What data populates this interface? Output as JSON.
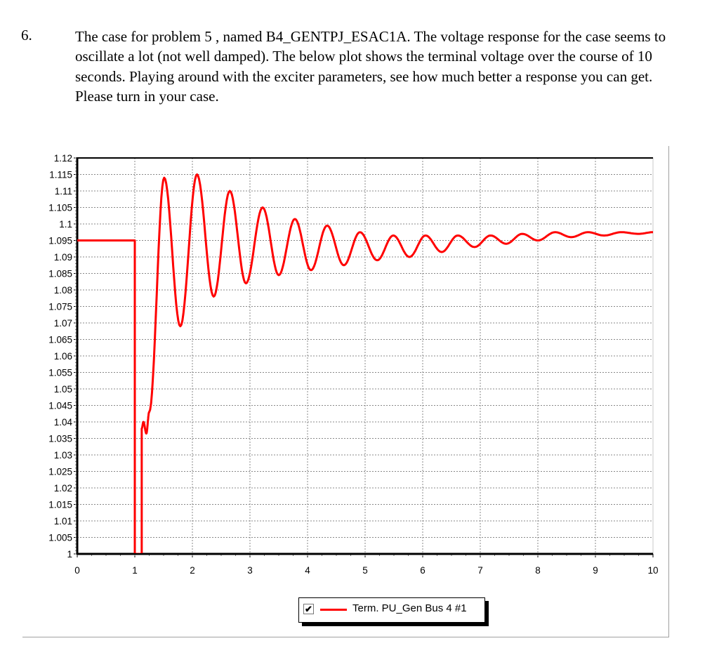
{
  "problem": {
    "number": "6.",
    "text": "The case for problem 5 , named B4_GENTPJ_ESAC1A.  The voltage response for the case seems to oscillate a lot (not well damped).  The below plot shows the terminal voltage over the course of 10 seconds.  Playing around with the exciter parameters, see how much better a response you can get.  Please turn in your case."
  },
  "chart_data": {
    "type": "line",
    "title": "",
    "xlabel": "",
    "ylabel": "",
    "xlim": [
      0,
      10
    ],
    "ylim": [
      1,
      1.12
    ],
    "x_ticks": [
      "0",
      "1",
      "2",
      "3",
      "4",
      "5",
      "6",
      "7",
      "8",
      "9",
      "10"
    ],
    "y_ticks": [
      "1",
      "1.005",
      "1.01",
      "1.015",
      "1.02",
      "1.025",
      "1.03",
      "1.035",
      "1.04",
      "1.045",
      "1.05",
      "1.055",
      "1.06",
      "1.065",
      "1.07",
      "1.075",
      "1.08",
      "1.085",
      "1.09",
      "1.095",
      "1.1",
      "1.105",
      "1.11",
      "1.115",
      "1.12"
    ],
    "grid": true,
    "legend_placement": "bottom-center",
    "series": [
      {
        "name": "Term. PU_Gen Bus 4 #1",
        "color": "#ff0000",
        "visible_checked": true,
        "points": [
          [
            0,
            1.095
          ],
          [
            1.0,
            1.095
          ],
          [
            1.0,
            1.0
          ],
          [
            1.12,
            1.0
          ],
          [
            1.12,
            1.038
          ],
          [
            1.15,
            1.04
          ],
          [
            1.2,
            1.0365
          ],
          [
            1.25,
            1.043
          ],
          [
            1.51,
            1.114
          ],
          [
            1.79,
            1.069
          ],
          [
            2.08,
            1.115
          ],
          [
            2.37,
            1.078
          ],
          [
            2.65,
            1.11
          ],
          [
            2.93,
            1.082
          ],
          [
            3.22,
            1.105
          ],
          [
            3.5,
            1.0845
          ],
          [
            3.78,
            1.1015
          ],
          [
            4.06,
            1.086
          ],
          [
            4.34,
            1.0995
          ],
          [
            4.63,
            1.0875
          ],
          [
            4.91,
            1.0975
          ],
          [
            5.21,
            1.089
          ],
          [
            5.49,
            1.0965
          ],
          [
            5.77,
            1.09
          ],
          [
            6.05,
            1.0965
          ],
          [
            6.33,
            1.0915
          ],
          [
            6.61,
            1.0965
          ],
          [
            6.9,
            1.093
          ],
          [
            7.18,
            1.0965
          ],
          [
            7.45,
            1.094
          ],
          [
            7.73,
            1.097
          ],
          [
            8.0,
            1.095
          ],
          [
            8.3,
            1.0975
          ],
          [
            8.58,
            1.096
          ],
          [
            8.87,
            1.0975
          ],
          [
            9.15,
            1.0965
          ],
          [
            9.45,
            1.0975
          ],
          [
            9.75,
            1.097
          ],
          [
            10,
            1.0975
          ]
        ]
      }
    ]
  }
}
